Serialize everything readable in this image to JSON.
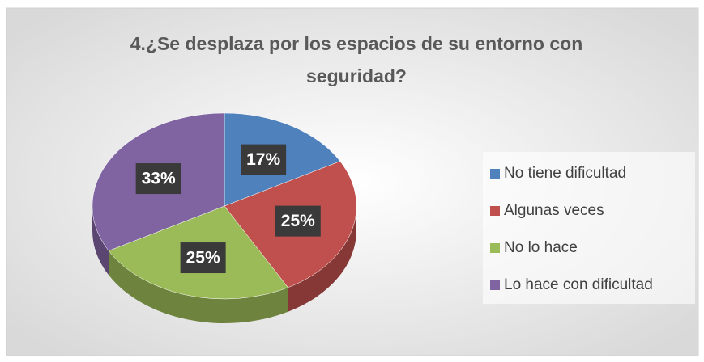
{
  "chart_data": {
    "type": "pie",
    "title": "4.¿Se desplaza por los espacios de su entorno con seguridad?",
    "categories": [
      "No tiene dificultad",
      "Algunas veces",
      "No lo hace",
      "Lo hace con dificultad"
    ],
    "values": [
      17,
      25,
      25,
      33
    ],
    "value_labels": [
      "17%",
      "25%",
      "25%",
      "33%"
    ],
    "colors": [
      "#4f81bd",
      "#c0504d",
      "#9bbb59",
      "#8064a2"
    ],
    "legend": "right"
  }
}
